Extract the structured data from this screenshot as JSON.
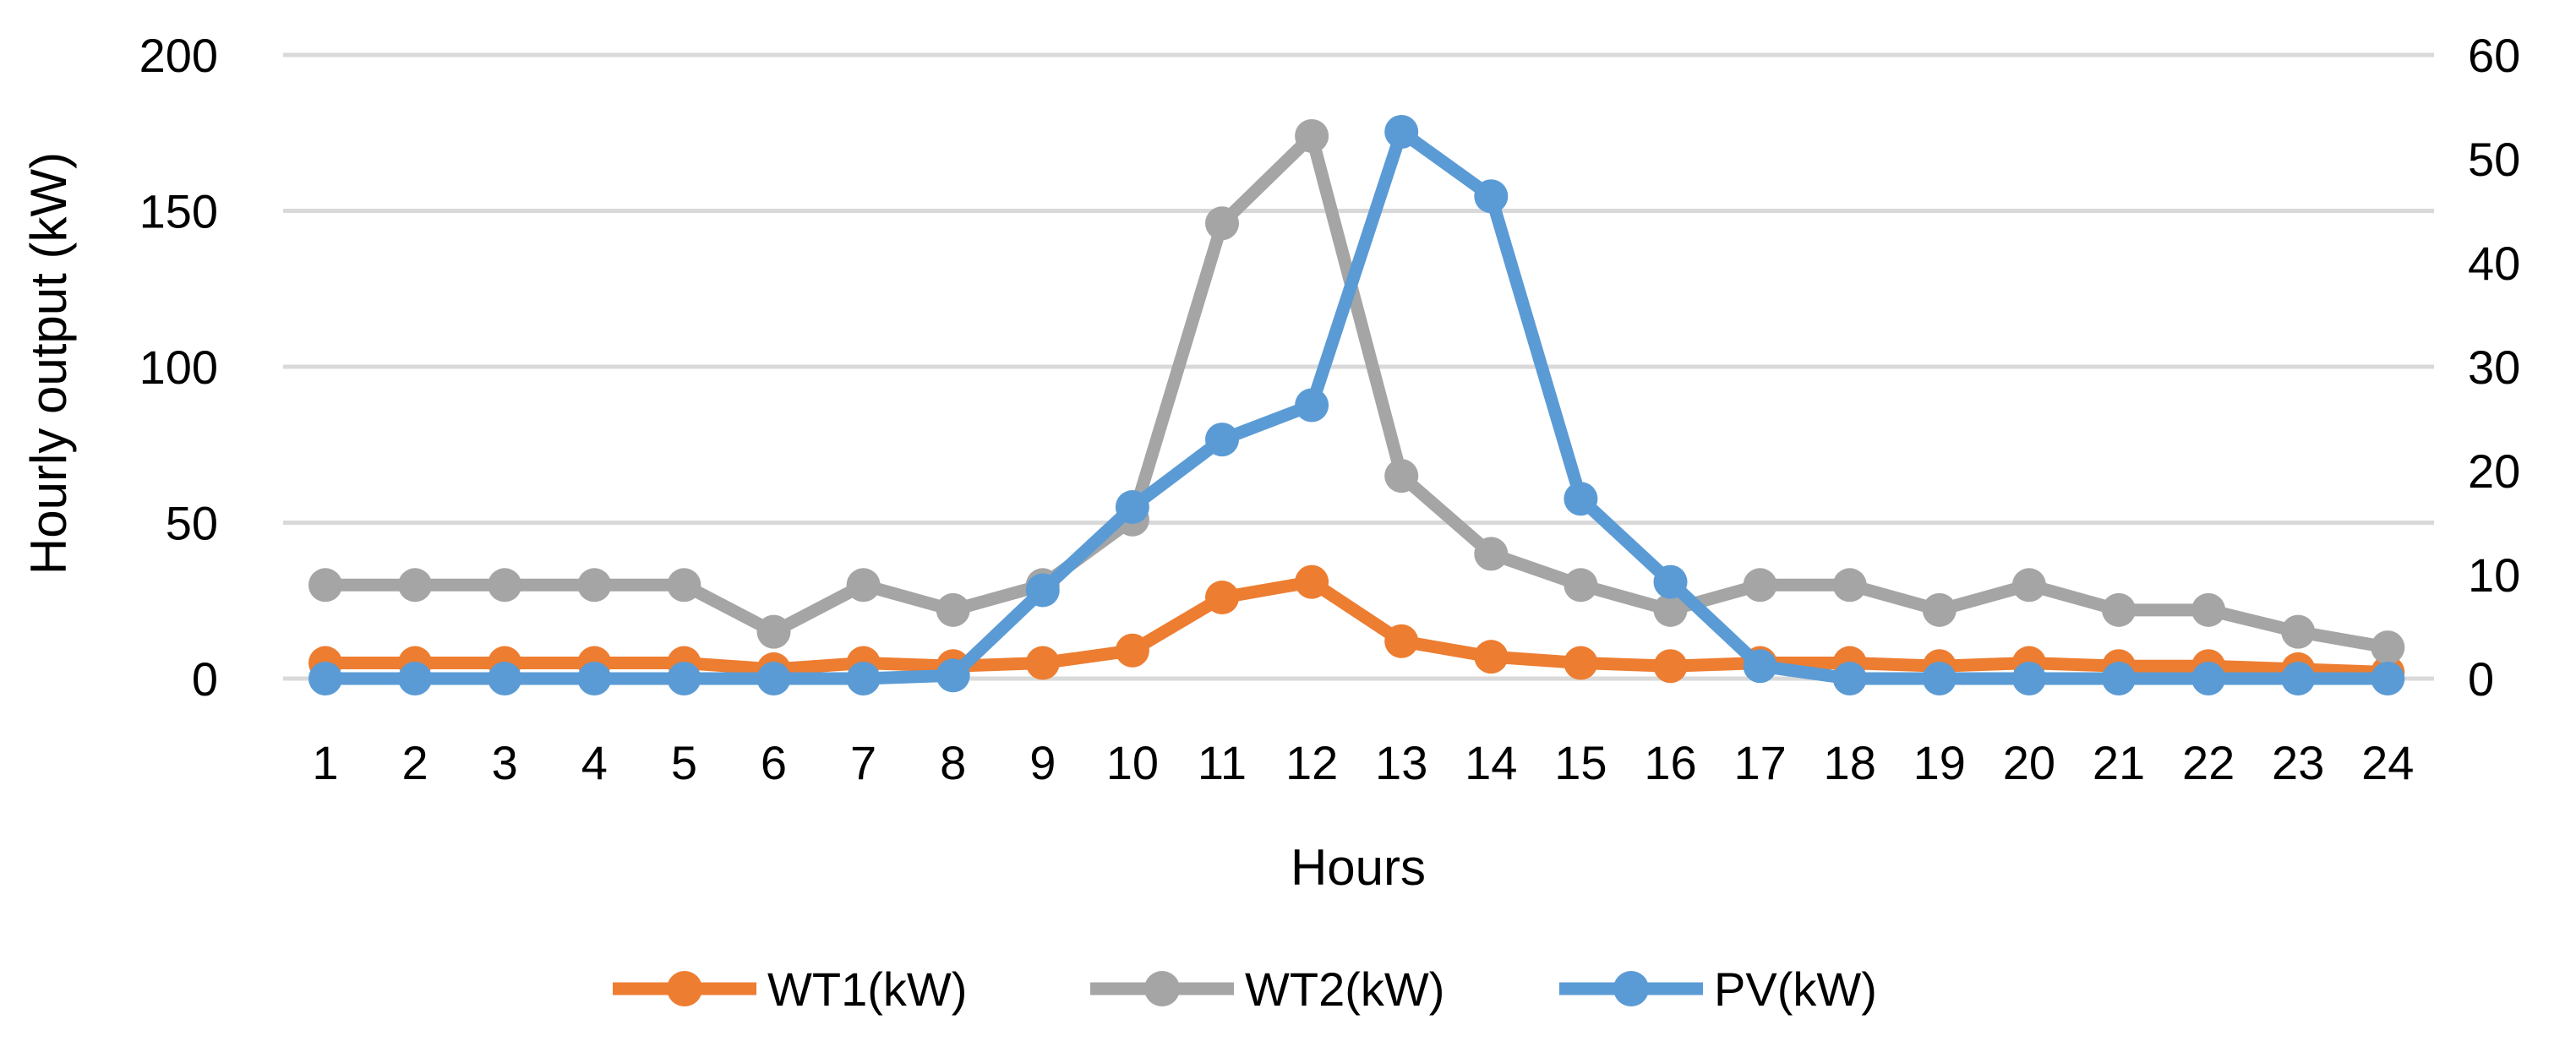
{
  "chart_data": {
    "type": "line",
    "title": "",
    "xlabel": "Hours",
    "ylabel": "Hourly output (kW)",
    "x": [
      1,
      2,
      3,
      4,
      5,
      6,
      7,
      8,
      9,
      10,
      11,
      12,
      13,
      14,
      15,
      16,
      17,
      18,
      19,
      20,
      21,
      22,
      23,
      24
    ],
    "ylim": [
      0,
      200
    ],
    "yticks": [
      0,
      50,
      100,
      150,
      200
    ],
    "y2lim": [
      0,
      60
    ],
    "y2ticks": [
      0,
      10,
      20,
      30,
      40,
      50,
      60
    ],
    "grid": true,
    "legend_position": "bottom",
    "series": [
      {
        "name": "WT1(kW)",
        "axis": "left",
        "color": "#ED7D31",
        "values": [
          5,
          5,
          5,
          5,
          5,
          3,
          5,
          4,
          5,
          9,
          26,
          31,
          12,
          7,
          5,
          4,
          5,
          5,
          4,
          5,
          4,
          4,
          3,
          2
        ]
      },
      {
        "name": "WT2(kW)",
        "axis": "left",
        "color": "#A5A5A5",
        "values": [
          30,
          30,
          30,
          30,
          30,
          15,
          30,
          22,
          30,
          51,
          146,
          174,
          65,
          40,
          30,
          22,
          30,
          30,
          22,
          30,
          22,
          22,
          15,
          10
        ]
      },
      {
        "name": "PV(kW)",
        "axis": "right",
        "color": "#5B9BD5",
        "values": [
          0,
          0,
          0,
          0,
          0,
          0,
          0,
          0.3,
          8.5,
          16.5,
          23,
          26.3,
          52.6,
          46.4,
          17.3,
          9.3,
          1.2,
          0,
          0,
          0,
          0,
          0,
          0,
          0
        ]
      }
    ]
  }
}
